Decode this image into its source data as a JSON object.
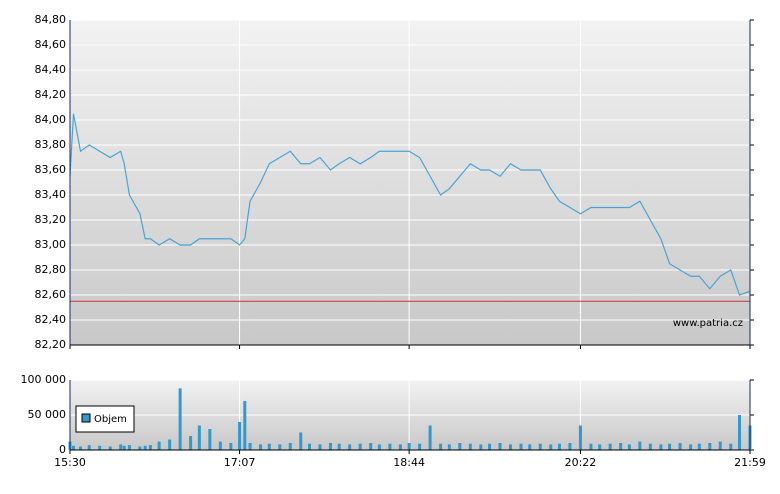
{
  "chart_data": [
    {
      "type": "line",
      "color": "#4aa3d6",
      "reference_line": 82.55,
      "reference_color": "#cc3333",
      "watermark": "www.patria.cz",
      "grid": true,
      "xlim": [
        930,
        1319
      ],
      "ylim": [
        82.2,
        84.8
      ],
      "yticks": [
        {
          "value": 82.2,
          "label": "82,20"
        },
        {
          "value": 82.4,
          "label": "82,40"
        },
        {
          "value": 82.6,
          "label": "82,60"
        },
        {
          "value": 82.8,
          "label": "82,80"
        },
        {
          "value": 83.0,
          "label": "83,00"
        },
        {
          "value": 83.2,
          "label": "83,20"
        },
        {
          "value": 83.4,
          "label": "83,40"
        },
        {
          "value": 83.6,
          "label": "83,60"
        },
        {
          "value": 83.8,
          "label": "83,80"
        },
        {
          "value": 84.0,
          "label": "84,00"
        },
        {
          "value": 84.2,
          "label": "84,20"
        },
        {
          "value": 84.4,
          "label": "84,40"
        },
        {
          "value": 84.6,
          "label": "84,60"
        },
        {
          "value": 84.8,
          "label": "84,80"
        }
      ],
      "x": [
        930,
        932,
        936,
        941,
        947,
        953,
        959,
        961,
        964,
        970,
        973,
        976,
        981,
        987,
        993,
        999,
        1004,
        1010,
        1016,
        1022,
        1027,
        1030,
        1033,
        1039,
        1044,
        1050,
        1056,
        1062,
        1067,
        1073,
        1079,
        1084,
        1090,
        1096,
        1102,
        1107,
        1113,
        1119,
        1124,
        1130,
        1136,
        1142,
        1147,
        1153,
        1159,
        1165,
        1170,
        1176,
        1182,
        1188,
        1193,
        1199,
        1205,
        1210,
        1216,
        1222,
        1228,
        1233,
        1239,
        1245,
        1250,
        1256,
        1262,
        1268,
        1273,
        1279,
        1285,
        1290,
        1296,
        1302,
        1308,
        1313,
        1319
      ],
      "values": [
        83.55,
        84.05,
        83.75,
        83.8,
        83.75,
        83.7,
        83.75,
        83.65,
        83.4,
        83.25,
        83.05,
        83.05,
        83.0,
        83.05,
        83.0,
        83.0,
        83.05,
        83.05,
        83.05,
        83.05,
        83.0,
        83.05,
        83.35,
        83.5,
        83.65,
        83.7,
        83.75,
        83.65,
        83.65,
        83.7,
        83.6,
        83.65,
        83.7,
        83.65,
        83.7,
        83.75,
        83.75,
        83.75,
        83.75,
        83.7,
        83.55,
        83.4,
        83.45,
        83.55,
        83.65,
        83.6,
        83.6,
        83.55,
        83.65,
        83.6,
        83.6,
        83.6,
        83.45,
        83.35,
        83.3,
        83.25,
        83.3,
        83.3,
        83.3,
        83.3,
        83.3,
        83.35,
        83.2,
        83.05,
        82.85,
        82.8,
        82.75,
        82.75,
        82.65,
        82.75,
        82.8,
        82.6,
        82.63
      ]
    },
    {
      "type": "bar",
      "grid": true,
      "legend": "lower left",
      "xlim": [
        930,
        1319
      ],
      "ylim": [
        0,
        100000
      ],
      "xticks": [
        {
          "value": 930,
          "label": "15:30"
        },
        {
          "value": 1027,
          "label": "17:07"
        },
        {
          "value": 1124,
          "label": "18:44"
        },
        {
          "value": 1222,
          "label": "20:22"
        },
        {
          "value": 1319,
          "label": "21:59"
        }
      ],
      "yticks": [
        0,
        {
          "value": 50000,
          "label": "50 000"
        },
        {
          "value": 100000,
          "label": "100 000"
        }
      ],
      "x": [
        930,
        932,
        936,
        941,
        947,
        953,
        959,
        961,
        964,
        970,
        973,
        976,
        981,
        987,
        993,
        999,
        1004,
        1010,
        1016,
        1022,
        1027,
        1030,
        1033,
        1039,
        1044,
        1050,
        1056,
        1062,
        1067,
        1073,
        1079,
        1084,
        1090,
        1096,
        1102,
        1107,
        1113,
        1119,
        1124,
        1130,
        1136,
        1142,
        1147,
        1153,
        1159,
        1165,
        1170,
        1176,
        1182,
        1188,
        1193,
        1199,
        1205,
        1210,
        1216,
        1222,
        1228,
        1233,
        1239,
        1245,
        1250,
        1256,
        1262,
        1268,
        1273,
        1279,
        1285,
        1290,
        1296,
        1302,
        1308,
        1313,
        1319
      ],
      "series": [
        {
          "name": "Objem",
          "color": "#3399cc",
          "values": [
            12000,
            6000,
            5000,
            7000,
            6000,
            5000,
            8000,
            6000,
            7000,
            5000,
            6000,
            7000,
            12000,
            15000,
            88000,
            20000,
            35000,
            30000,
            12000,
            10000,
            40000,
            70000,
            10000,
            8000,
            9000,
            8000,
            10000,
            25000,
            9000,
            8000,
            10000,
            9000,
            8000,
            9000,
            10000,
            8000,
            9000,
            8000,
            10000,
            9000,
            35000,
            9000,
            8000,
            10000,
            9000,
            8000,
            9000,
            10000,
            8000,
            9000,
            8000,
            9000,
            8000,
            9000,
            10000,
            35000,
            9000,
            8000,
            9000,
            10000,
            8000,
            12000,
            9000,
            8000,
            9000,
            10000,
            8000,
            9000,
            10000,
            12000,
            9000,
            50000,
            35000
          ]
        }
      ]
    }
  ]
}
